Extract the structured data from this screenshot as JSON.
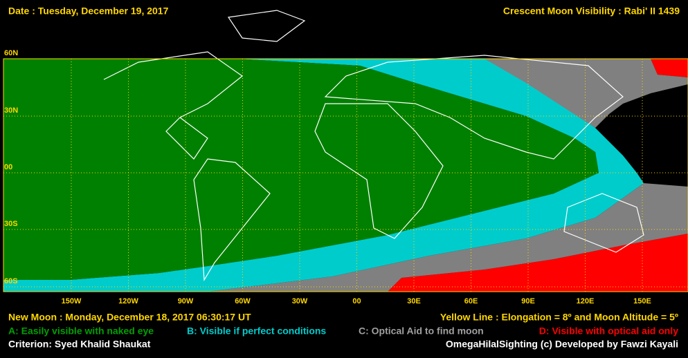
{
  "header": {
    "date": "Date : Tuesday, December 19, 2017",
    "title": "Crescent Moon Visibility : Rabi' II  1439"
  },
  "lat_labels": [
    "60N",
    "30N",
    "00",
    "30S",
    "60S"
  ],
  "lon_labels": [
    "150W",
    "120W",
    "90W",
    "60W",
    "30W",
    "00",
    "30E",
    "60E",
    "90E",
    "120E",
    "150E"
  ],
  "footer": {
    "new_moon": "New Moon : Monday, December 18, 2017  06:30:17  UT",
    "yellow_line": "Yellow Line : Elongation = 8º  and Moon Altitude = 5º",
    "criterion": "Criterion: Syed Khalid Shaukat",
    "credit": "OmegaHilalSighting  (c)  Developed by Fawzi Kayali"
  },
  "legend": [
    "A: Easily visible with naked eye",
    "B: Visible if perfect conditions",
    "C: Optical Aid to find moon",
    "D: Visible with optical aid only"
  ]
}
